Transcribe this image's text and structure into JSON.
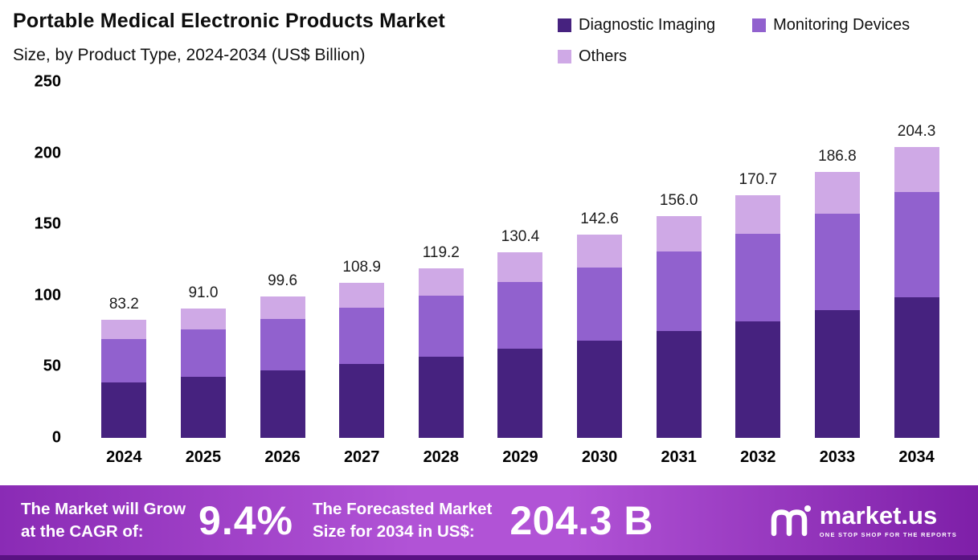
{
  "title": {
    "line1": "Portable Medical Electronic Products Market",
    "line2": "Size, by Product Type, 2024-2034 (US$ Billion)"
  },
  "chart_data": {
    "type": "bar",
    "stacked": true,
    "title": "Portable Medical Electronic Products Market Size, by Product Type, 2024-2034 (US$ Billion)",
    "categories": [
      "2024",
      "2025",
      "2026",
      "2027",
      "2028",
      "2029",
      "2030",
      "2031",
      "2032",
      "2033",
      "2034"
    ],
    "series": [
      {
        "name": "Diagnostic Imaging",
        "color": "#46227f",
        "values": [
          39.0,
          43.0,
          47.5,
          52.0,
          57.0,
          62.5,
          68.5,
          75.0,
          82.0,
          90.0,
          98.5
        ]
      },
      {
        "name": "Monitoring Devices",
        "color": "#9161ce",
        "values": [
          30.5,
          33.0,
          36.0,
          39.4,
          43.0,
          47.0,
          51.3,
          56.0,
          61.5,
          67.5,
          74.0
        ]
      },
      {
        "name": "Others",
        "color": "#cfa9e6",
        "values": [
          13.7,
          15.0,
          16.1,
          17.5,
          19.2,
          20.9,
          22.8,
          25.0,
          27.2,
          29.3,
          31.8
        ]
      }
    ],
    "totals": [
      83.2,
      91.0,
      99.6,
      108.9,
      119.2,
      130.4,
      142.6,
      156.0,
      170.7,
      186.8,
      204.3
    ],
    "totals_display": [
      "83.2",
      "91.0",
      "99.6",
      "108.9",
      "119.2",
      "130.4",
      "142.6",
      "156.0",
      "170.7",
      "186.8",
      "204.3"
    ],
    "xlabel": "",
    "ylabel": "",
    "ylim": [
      0,
      250
    ],
    "yticks": [
      "0",
      "50",
      "100",
      "150",
      "200",
      "250"
    ],
    "grid": false,
    "legend_position": "top-right"
  },
  "footer": {
    "cagr_label_line1": "The Market will Grow",
    "cagr_label_line2": "at the CAGR of:",
    "cagr_value": "9.4%",
    "forecast_label_line1": "The Forecasted Market",
    "forecast_label_line2": "Size for 2034 in US$:",
    "forecast_value": "204.3 B",
    "brand_name": "market.us",
    "brand_tagline": "ONE STOP SHOP FOR THE REPORTS"
  },
  "colors": {
    "background": "#ffffff",
    "diagnostic_imaging": "#46227f",
    "monitoring_devices": "#9161ce",
    "others": "#cfa9e6",
    "banner_gradient_left": "#8a2bb5",
    "banner_gradient_mid": "#b153d6",
    "banner_gradient_right": "#7e1fa8",
    "banner_strip": "#5a1283",
    "banner_text": "#ffffff"
  }
}
